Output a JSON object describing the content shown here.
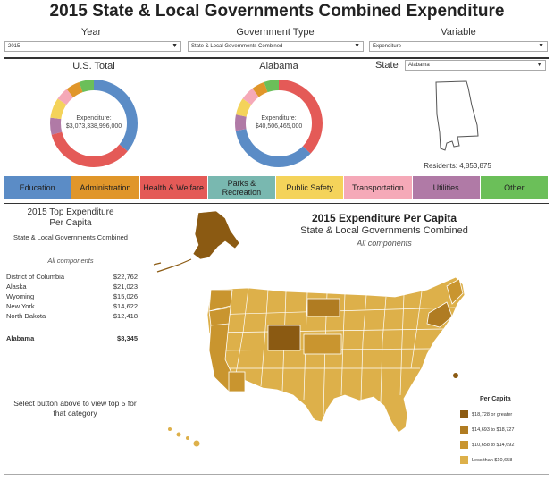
{
  "title": "2015 State & Local Governments Combined Expenditure",
  "filters": {
    "year": {
      "label": "Year",
      "value": "2015"
    },
    "gov_type": {
      "label": "Government Type",
      "value": "State & Local Governments Combined"
    },
    "variable": {
      "label": "Variable",
      "value": "Expenditure"
    }
  },
  "us_total": {
    "label": "U.S. Total",
    "caption": "Expenditure:",
    "value": "$3,073,338,996,000"
  },
  "state_donut": {
    "label": "Alabama",
    "caption": "Expenditure:",
    "value": "$40,506,465,000"
  },
  "state_select": {
    "label": "State",
    "value": "Alabama"
  },
  "residents": "Residents: 4,853,875",
  "categories": [
    {
      "label": "Education",
      "color": "#5b8cc6"
    },
    {
      "label": "Administration",
      "color": "#e0962a"
    },
    {
      "label": "Health & Welfare",
      "color": "#e45a57"
    },
    {
      "label": "Parks & Recreation",
      "color": "#79b8b0"
    },
    {
      "label": "Public Safety",
      "color": "#f4d35a"
    },
    {
      "label": "Transportation",
      "color": "#f5a9b8"
    },
    {
      "label": "Utilities",
      "color": "#b07aa6"
    },
    {
      "label": "Other",
      "color": "#6bbf59"
    }
  ],
  "top5": {
    "title": "2015 Top Expenditure Per Capita",
    "subtitle": "State & Local Governments Combined",
    "filter": "All components",
    "rows": [
      {
        "state": "District of Columbia",
        "value": "$22,762"
      },
      {
        "state": "Alaska",
        "value": "$21,023"
      },
      {
        "state": "Wyoming",
        "value": "$15,026"
      },
      {
        "state": "New York",
        "value": "$14,622"
      },
      {
        "state": "North Dakota",
        "value": "$12,418"
      }
    ],
    "selected": {
      "state": "Alabama",
      "value": "$8,345"
    },
    "hint": "Select button above to view top 5 for that category"
  },
  "map": {
    "title": "2015 Expenditure Per Capita",
    "subtitle": "State & Local Governments Combined",
    "filter": "All components",
    "legend_title": "Per Capita",
    "legend": [
      {
        "label": "$18,728 or greater",
        "color": "#8b5a12"
      },
      {
        "label": "$14,693 to $18,727",
        "color": "#b07c22"
      },
      {
        "label": "$10,658 to $14,692",
        "color": "#c9952f"
      },
      {
        "label": "Less than $10,658",
        "color": "#ddb04a"
      }
    ]
  }
}
